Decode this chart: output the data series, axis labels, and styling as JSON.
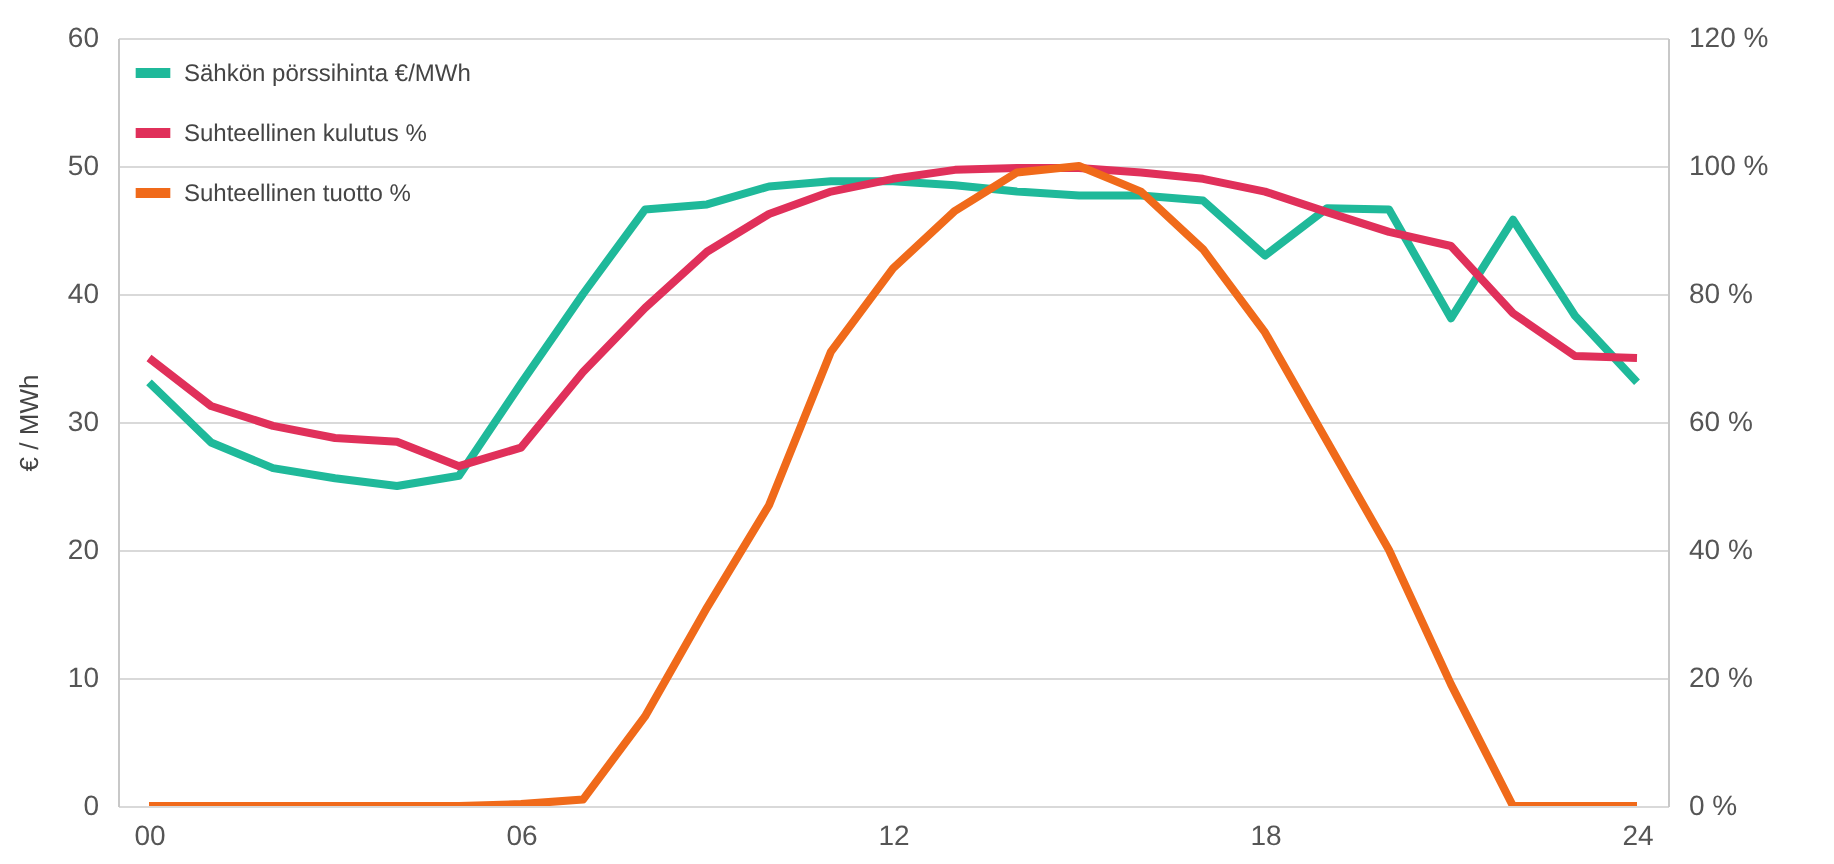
{
  "chart_data": {
    "type": "line",
    "ylabel": "€ / MWh",
    "x": [
      0,
      1,
      2,
      3,
      4,
      5,
      6,
      7,
      8,
      9,
      10,
      11,
      12,
      13,
      14,
      15,
      16,
      17,
      18,
      19,
      20,
      21,
      22,
      23,
      24
    ],
    "series": [
      {
        "name": "Sähkön pörssihinta €/MWh",
        "color": "#1fb99a",
        "values": [
          33.1,
          28.4,
          26.4,
          25.6,
          25,
          25.8,
          33,
          40,
          46.6,
          47,
          48.4,
          48.8,
          48.8,
          48.5,
          48,
          47.7,
          47.7,
          47.3,
          43,
          46.7,
          46.6,
          38.1,
          45.8,
          38.3,
          33.1
        ]
      },
      {
        "name": "Suhteellinen kulutus %",
        "color": "#e0305a",
        "axis": "y2",
        "values": [
          70,
          62.5,
          59.4,
          57.5,
          56.9,
          53.1,
          56,
          67.8,
          77.8,
          86.6,
          92.5,
          96,
          98,
          99.4,
          99.7,
          99.7,
          99,
          98,
          96,
          92.8,
          89.7,
          87.5,
          77,
          70.3,
          70
        ]
      },
      {
        "name": "Suhteellinen tuotto %",
        "color": "#f06a1a",
        "axis": "y2",
        "values": [
          0,
          0,
          0,
          0,
          0,
          0,
          0.3,
          1,
          14,
          31,
          47,
          71,
          84,
          93,
          99,
          100,
          96,
          87,
          74,
          57,
          40,
          19,
          0,
          0,
          0
        ]
      }
    ],
    "xlim": [
      -0.5,
      24.5
    ],
    "xticks": [
      {
        "value": 0,
        "label": "00"
      },
      {
        "value": 6,
        "label": "06"
      },
      12,
      18,
      24
    ],
    "ylim": [
      0,
      60
    ],
    "yticks": [
      0,
      10,
      20,
      30,
      40,
      50,
      60
    ],
    "y2lim": [
      0,
      120
    ],
    "y2ticks": [
      {
        "value": 0,
        "label": "0 %"
      },
      {
        "value": 20,
        "label": "20 %"
      },
      {
        "value": 40,
        "label": "40 %"
      },
      {
        "value": 60,
        "label": "60 %"
      },
      {
        "value": 80,
        "label": "80 %"
      },
      {
        "value": 100,
        "label": "100 %"
      },
      {
        "value": 120,
        "label": "120 %"
      }
    ],
    "grid": "y",
    "legend": "top left",
    "line_style": "solid",
    "marker": "none"
  }
}
